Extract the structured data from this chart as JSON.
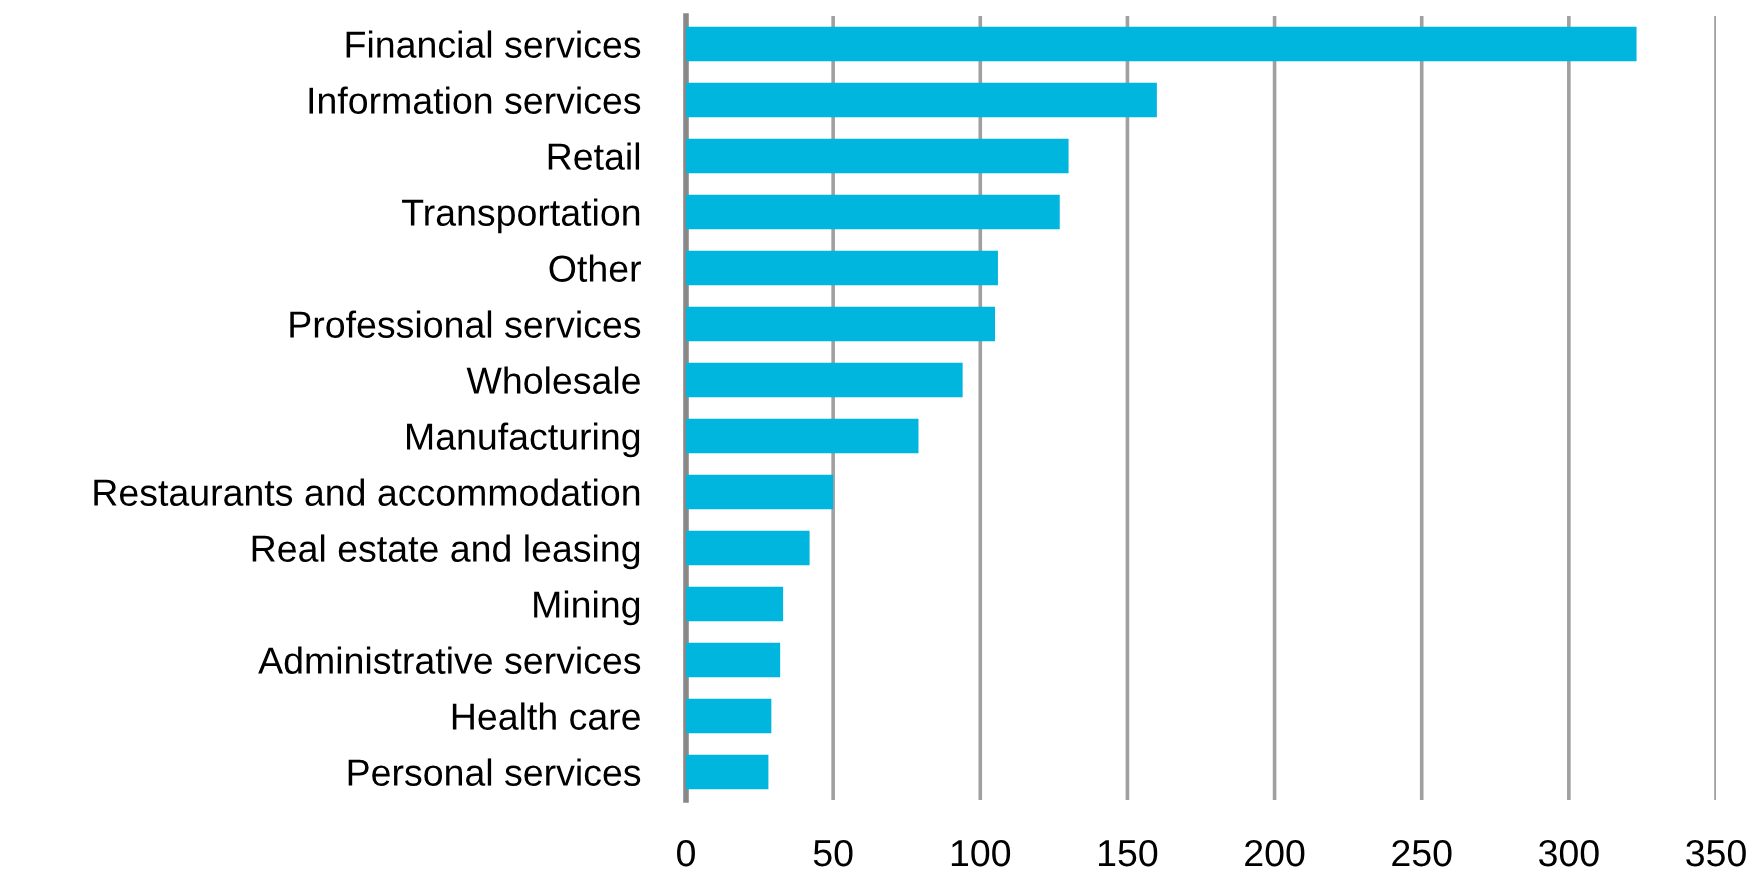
{
  "chart_data": {
    "type": "bar",
    "orientation": "horizontal",
    "categories": [
      "Financial services",
      "Information services",
      "Retail",
      "Transportation",
      "Other",
      "Professional services",
      "Wholesale",
      "Manufacturing",
      "Restaurants and accommodation",
      "Real estate and leasing",
      "Mining",
      "Administrative services",
      "Health care",
      "Personal services"
    ],
    "values": [
      323,
      160,
      130,
      127,
      106,
      105,
      94,
      79,
      50,
      42,
      33,
      32,
      29,
      28
    ],
    "color": "#00b5de",
    "xlim": [
      0,
      350
    ],
    "xticks": [
      0,
      50,
      100,
      150,
      200,
      250,
      300,
      350
    ],
    "grid": "x"
  }
}
